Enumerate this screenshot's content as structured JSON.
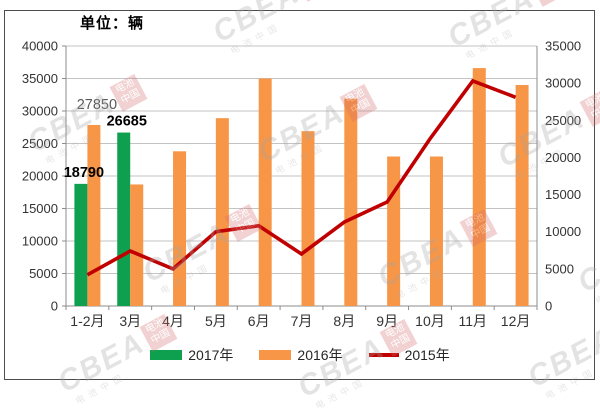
{
  "header": {
    "unit_label": "单位：辆"
  },
  "colors": {
    "green_2017": "#0ea04e",
    "orange_2016": "#f79646",
    "red_2015": "#c00000",
    "gridline": "#c3c3c3",
    "axis_line": "#8c8c8c",
    "axis_text": "#333333",
    "label_gray": "#595959",
    "label_black": "#000000",
    "frame_border": "#4d4d4d"
  },
  "watermark": {
    "brand": "CBEA",
    "seal_line1": "电池",
    "seal_line2": "中国",
    "sub_text": "电池中国"
  },
  "chart_data": {
    "type": "bar",
    "subtype": "bar+line combo, dual axis",
    "title": "单位：辆",
    "grid": true,
    "legend_position": "bottom",
    "categories": [
      "1-2月",
      "3月",
      "4月",
      "5月",
      "6月",
      "7月",
      "8月",
      "9月",
      "10月",
      "11月",
      "12月"
    ],
    "left_axis": {
      "min": 0,
      "max": 40000,
      "step": 5000,
      "applies_to": "bars"
    },
    "right_axis": {
      "min": 0,
      "max": 35000,
      "step": 5000,
      "applies_to": "line"
    },
    "series": [
      {
        "name": "2017年",
        "type": "bar",
        "axis": "left",
        "color": "#0ea04e",
        "values": [
          18790,
          26685,
          null,
          null,
          null,
          null,
          null,
          null,
          null,
          null,
          null
        ]
      },
      {
        "name": "2016年",
        "type": "bar",
        "axis": "left",
        "color": "#f79646",
        "values": [
          27850,
          18700,
          23800,
          28900,
          35000,
          26900,
          31900,
          23000,
          23000,
          36600,
          34000
        ]
      },
      {
        "name": "2015年",
        "type": "line",
        "axis": "right",
        "color": "#c00000",
        "values": [
          4200,
          7400,
          5000,
          10000,
          10800,
          7000,
          11300,
          14000,
          22500,
          30300,
          28100
        ]
      }
    ],
    "data_labels": [
      {
        "text": "27850",
        "series": "2016年",
        "category_index": 0,
        "bold": false,
        "color": "#595959"
      },
      {
        "text": "26685",
        "series": "2017年",
        "category_index": 1,
        "bold": true,
        "color": "#000000"
      },
      {
        "text": "18790",
        "series": "2017年",
        "category_index": 0,
        "bold": true,
        "color": "#000000"
      }
    ]
  }
}
